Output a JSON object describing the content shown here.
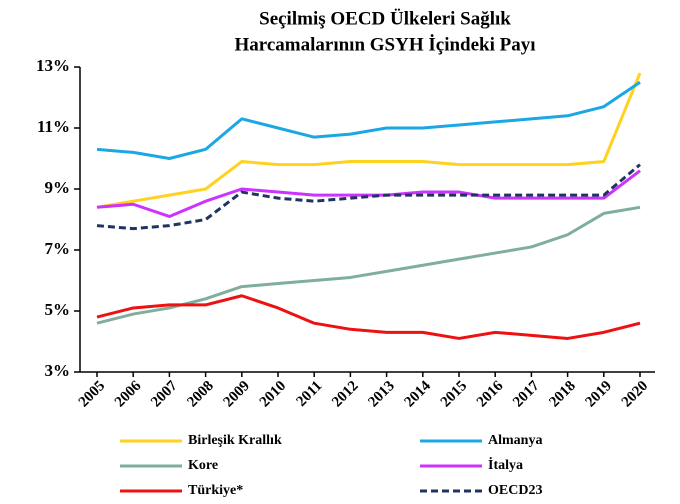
{
  "chart_data": {
    "type": "line",
    "title": [
      "Seçilmiş OECD  Ülkeleri Sağlık",
      "Harcamalarının  GSYH  İçindeki Payı"
    ],
    "categories": [
      "2005",
      "2006",
      "2007",
      "2008",
      "2009",
      "2010",
      "2011",
      "2012",
      "2013",
      "2014",
      "2015",
      "2016",
      "2017",
      "2018",
      "2019",
      "2020"
    ],
    "ylim": [
      3,
      13
    ],
    "yticks": [
      {
        "value": 3,
        "label": "3%"
      },
      {
        "value": 5,
        "label": "5%"
      },
      {
        "value": 7,
        "label": "7%"
      },
      {
        "value": 9,
        "label": "9%"
      },
      {
        "value": 11,
        "label": "11%"
      },
      {
        "value": 13,
        "label": "13%"
      }
    ],
    "grid": false,
    "legend": "bottom",
    "series": [
      {
        "name": "Birleşik Krallık",
        "color": "#ffd21f",
        "dash": false,
        "values": [
          8.4,
          8.6,
          8.8,
          9.0,
          9.9,
          9.8,
          9.8,
          9.9,
          9.9,
          9.9,
          9.8,
          9.8,
          9.8,
          9.8,
          9.9,
          12.8
        ]
      },
      {
        "name": "Almanya",
        "color": "#1aa7e3",
        "dash": false,
        "values": [
          10.3,
          10.2,
          10.0,
          10.3,
          11.3,
          11.0,
          10.7,
          10.8,
          11.0,
          11.0,
          11.1,
          11.2,
          11.3,
          11.4,
          11.7,
          12.5
        ]
      },
      {
        "name": "Kore",
        "color": "#7fae9c",
        "dash": false,
        "values": [
          4.6,
          4.9,
          5.1,
          5.4,
          5.8,
          5.9,
          6.0,
          6.1,
          6.3,
          6.5,
          6.7,
          6.9,
          7.1,
          7.5,
          8.2,
          8.4
        ]
      },
      {
        "name": "İtalya",
        "color": "#cc33ff",
        "dash": false,
        "values": [
          8.4,
          8.5,
          8.1,
          8.6,
          9.0,
          8.9,
          8.8,
          8.8,
          8.8,
          8.9,
          8.9,
          8.7,
          8.7,
          8.7,
          8.7,
          9.6
        ]
      },
      {
        "name": "Türkiye*",
        "color": "#ee1111",
        "dash": false,
        "values": [
          4.8,
          5.1,
          5.2,
          5.2,
          5.5,
          5.1,
          4.6,
          4.4,
          4.3,
          4.3,
          4.1,
          4.3,
          4.2,
          4.1,
          4.3,
          4.6
        ]
      },
      {
        "name": "OECD23",
        "color": "#1f3461",
        "dash": true,
        "values": [
          7.8,
          7.7,
          7.8,
          8.0,
          8.9,
          8.7,
          8.6,
          8.7,
          8.8,
          8.8,
          8.8,
          8.8,
          8.8,
          8.8,
          8.8,
          9.8
        ]
      }
    ]
  }
}
